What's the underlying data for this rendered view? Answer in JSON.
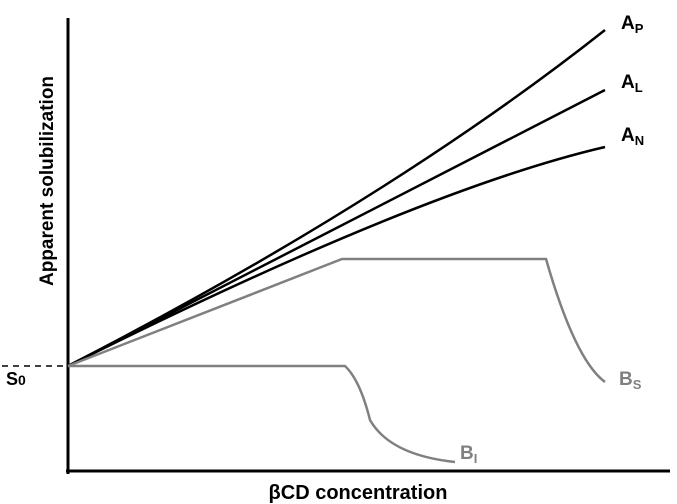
{
  "axes": {
    "y_label": "Apparent solubilization",
    "x_label": "βCD concentration",
    "s0_main": "S",
    "s0_sub": "0"
  },
  "curves": [
    {
      "main": "A",
      "sub": "P",
      "color": "#000000"
    },
    {
      "main": "A",
      "sub": "L",
      "color": "#000000"
    },
    {
      "main": "A",
      "sub": "N",
      "color": "#000000"
    },
    {
      "main": "B",
      "sub": "S",
      "color": "#808080"
    },
    {
      "main": "B",
      "sub": "I",
      "color": "#808080"
    }
  ],
  "colors": {
    "axis": "#000000",
    "a_type": "#000000",
    "b_type": "#808080"
  }
}
